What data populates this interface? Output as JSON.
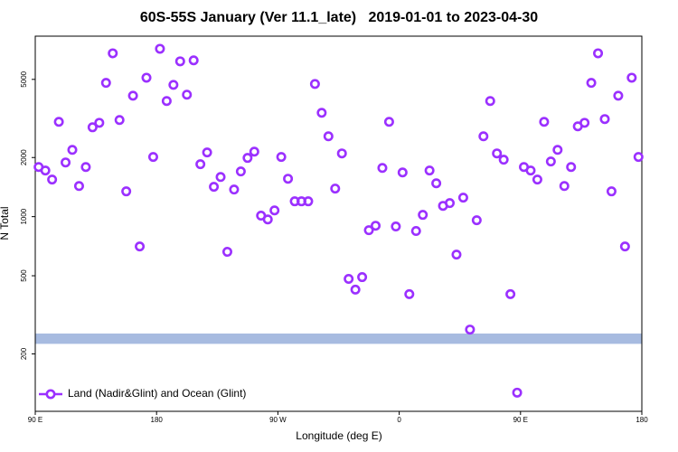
{
  "chart_data": {
    "type": "scatter",
    "title": "60S-55S January (Ver 11.1_late)   2019-01-01 to 2023-04-30",
    "xlabel": "Longitude (deg E)",
    "ylabel": "N Total",
    "log_y": true,
    "xlim": [
      90,
      540
    ],
    "ylim": [
      102,
      8300
    ],
    "xticks": [
      {
        "value": 90,
        "label": "90 E"
      },
      {
        "value": 180,
        "label": "180"
      },
      {
        "value": 270,
        "label": "90 W"
      },
      {
        "value": 360,
        "label": "0"
      },
      {
        "value": 450,
        "label": "90 E"
      },
      {
        "value": 540,
        "label": "180"
      }
    ],
    "yticks": [
      200,
      500,
      1000,
      2000,
      5000
    ],
    "band_ylim": [
      225,
      254
    ],
    "band_color": "#a7bbe0",
    "legend": "bottom-left",
    "series": [
      {
        "name": "Land (Nadir&Glint) and Ocean (Glint)",
        "color": "#9b30ff",
        "x": [
          92.5,
          97.5,
          102.5,
          107.5,
          112.5,
          117.5,
          122.5,
          127.5,
          132.5,
          137.5,
          142.5,
          147.5,
          152.5,
          157.5,
          162.5,
          167.5,
          172.5,
          177.5,
          182.5,
          187.5,
          192.5,
          197.5,
          202.5,
          207.5,
          212.5,
          217.5,
          222.5,
          227.5,
          232.5,
          237.5,
          242.5,
          247.5,
          252.5,
          257.5,
          262.5,
          267.5,
          272.5,
          277.5,
          282.5,
          287.5,
          292.5,
          297.5,
          302.5,
          307.5,
          312.5,
          317.5,
          322.5,
          327.5,
          332.5,
          337.5,
          342.5,
          347.5,
          352.5,
          357.5,
          362.5,
          367.5,
          372.5,
          377.5,
          382.5,
          387.5,
          392.5,
          397.5,
          402.5,
          407.5,
          412.5,
          417.5,
          422.5,
          427.5,
          432.5,
          437.5,
          442.5,
          447.5,
          452.5,
          457.5,
          462.5,
          467.5,
          472.5,
          477.5,
          482.5,
          487.5,
          492.5,
          497.5,
          502.5,
          507.5,
          512.5,
          517.5,
          522.5,
          527.5,
          532.5,
          537.5
        ],
        "values": [
          1790,
          1718,
          1545,
          3040,
          1888,
          2188,
          1432,
          1790,
          2851,
          3006,
          4800,
          6790,
          3105,
          1345,
          4130,
          705,
          5100,
          2014,
          7160,
          3880,
          4690,
          6180,
          4180,
          6250,
          1849,
          2123,
          1419,
          1592,
          662,
          1374,
          1699,
          1991,
          2143,
          1012,
          968,
          1076,
          2014,
          1560,
          1197,
          1197,
          1197,
          4740,
          3380,
          2565,
          1390,
          2099,
          482,
          425,
          492,
          853,
          899,
          1770,
          3040,
          891,
          1679,
          403,
          845,
          1021,
          1718,
          1479,
          1135,
          1172,
          641,
          1250,
          266,
          959,
          2565,
          3880,
          2099,
          1950,
          403,
          127,
          1790,
          1718,
          1545,
          3040,
          1910,
          2188,
          1432,
          1790,
          2884,
          3006,
          4800,
          6790,
          3140,
          1345,
          4130,
          705,
          5100,
          2014
        ]
      }
    ]
  }
}
